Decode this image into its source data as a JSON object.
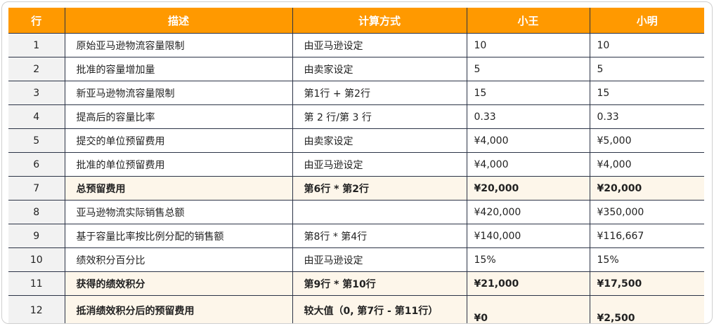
{
  "headers": [
    "行",
    "描述",
    "计算方式",
    "小王",
    "小明"
  ],
  "rows": [
    {
      "row": "1",
      "desc": "原始亚马逊物流容量限制",
      "calc": "由亚马逊设定",
      "wang": "10",
      "ming": "10",
      "bold": false
    },
    {
      "row": "2",
      "desc": "批准的容量增加量",
      "calc": "由卖家设定",
      "wang": "5",
      "ming": "5",
      "bold": false
    },
    {
      "row": "3",
      "desc": "新亚马逊物流容量限制",
      "calc": "第1行 + 第2行",
      "wang": "15",
      "ming": "15",
      "bold": false
    },
    {
      "row": "4",
      "desc": "提高后的容量比率",
      "calc": "第 2 行/第 3 行",
      "wang": "0.33",
      "ming": "0.33",
      "bold": false
    },
    {
      "row": "5",
      "desc": "提交的单位预留费用",
      "calc": "由卖家设定",
      "wang": "¥4,000",
      "ming": "¥5,000",
      "bold": false
    },
    {
      "row": "6",
      "desc": "批准的单位预留费用",
      "calc": "由亚马逊设定",
      "wang": "¥4,000",
      "ming": "¥4,000",
      "bold": false
    },
    {
      "row": "7",
      "desc": "总预留费用",
      "calc": "第6行 * 第2行",
      "wang": "¥20,000",
      "ming": "¥20,000",
      "bold": true
    },
    {
      "row": "8",
      "desc": "亚马逊物流实际销售总额",
      "calc": "",
      "wang": "¥420,000",
      "ming": "¥350,000",
      "bold": false
    },
    {
      "row": "9",
      "desc": "基于容量比率按比例分配的销售额",
      "calc": "第8行 * 第4行",
      "wang": "¥140,000",
      "ming": "¥116,667",
      "bold": false
    },
    {
      "row": "10",
      "desc": "绩效积分百分比",
      "calc": "由亚马逊设定",
      "wang": "15%",
      "ming": "15%",
      "bold": false
    },
    {
      "row": "11",
      "desc": "获得的绩效积分",
      "calc": "第9行 * 第10行",
      "wang": "¥21,000",
      "ming": "¥17,500",
      "bold": true
    },
    {
      "row": "12",
      "desc": "抵消绩效积分后的预留费用",
      "calc": "较大值（0, 第7行 - 第11行）",
      "wang": "¥0",
      "ming": "¥2,500",
      "bold": true
    }
  ],
  "colors": {
    "header": "#ff9900",
    "highlight": "#fdf6ea",
    "row_col": "#f2f2f2"
  }
}
